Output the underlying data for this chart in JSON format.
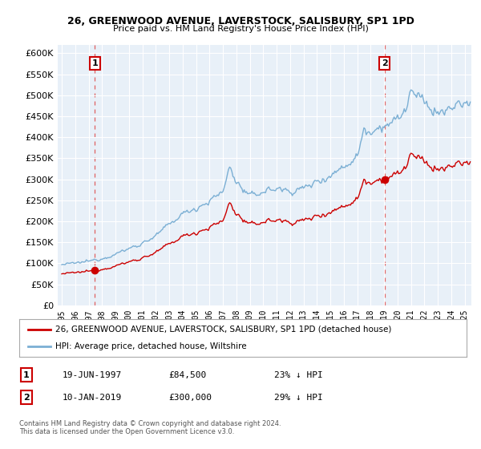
{
  "title": "26, GREENWOOD AVENUE, LAVERSTOCK, SALISBURY, SP1 1PD",
  "subtitle": "Price paid vs. HM Land Registry's House Price Index (HPI)",
  "sale1_date": 1997.47,
  "sale1_price": 84500,
  "sale1_label": "1",
  "sale2_date": 2019.03,
  "sale2_price": 300000,
  "sale2_label": "2",
  "hpi_color": "#7bafd4",
  "price_color": "#cc0000",
  "dashed_color": "#e06060",
  "plot_bg": "#e8f0f8",
  "fig_bg": "#ffffff",
  "legend_entry1": "26, GREENWOOD AVENUE, LAVERSTOCK, SALISBURY, SP1 1PD (detached house)",
  "legend_entry2": "HPI: Average price, detached house, Wiltshire",
  "annotation1_date": "19-JUN-1997",
  "annotation1_price": "£84,500",
  "annotation1_hpi": "23% ↓ HPI",
  "annotation2_date": "10-JAN-2019",
  "annotation2_price": "£300,000",
  "annotation2_hpi": "29% ↓ HPI",
  "footer": "Contains HM Land Registry data © Crown copyright and database right 2024.\nThis data is licensed under the Open Government Licence v3.0.",
  "ylim": [
    0,
    620000
  ],
  "xlim_start": 1994.7,
  "xlim_end": 2025.5
}
